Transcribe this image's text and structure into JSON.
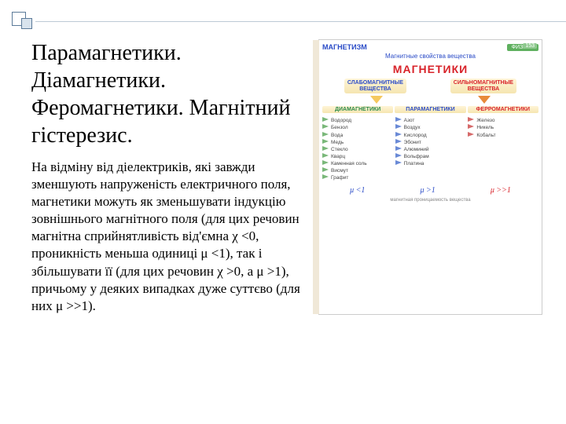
{
  "title": "Парамагнетики. Діамагнетики. Феромагнетики. Магнітний гістерезис.",
  "body": "На відміну від діелектриків, які завжди зменшують напруженість електричного поля, магнетики можуть як зменьшувати індукцію зовнішнього магнітного поля (для цих речовин магнітна сприйнятливість від'ємна χ <0, проникність меньша одиниці μ <1), так і збільшувати її (для цих речовин χ >0, а μ >1), причьому у деяких випадках дуже суттєво (для них μ >>1).",
  "diagram": {
    "page_num": "153",
    "header_left": "МАГНЕТИЗМ",
    "header_right": "ФИЗИКА",
    "subhead": "Магнитные свойства вещества",
    "main_title": "МАГНЕТИКИ",
    "groups": [
      {
        "label": "СЛАБОМАГНИТНЫЕ\nВЕЩЕСТВА",
        "color_class": "blue",
        "arrow_color": "#f5c95f"
      },
      {
        "label": "СИЛЬНОМАГНИТНЫЕ\nВЕЩЕСТВА",
        "color_class": "red",
        "arrow_color": "#e88a3a"
      }
    ],
    "subgroups": [
      {
        "label": "ДИАМАГНЕТИКИ",
        "color": "#2a8a4a"
      },
      {
        "label": "ПАРАМАГНЕТИКИ",
        "color": "#2a4bc7"
      },
      {
        "label": "ФЕРРОМАГНЕТИКИ",
        "color": "#d8232a"
      }
    ],
    "columns": [
      {
        "arrow_color": "#7ab87a",
        "items": [
          "Водород",
          "Бензол",
          "Вода",
          "Медь",
          "Стекло",
          "Кварц",
          "Каменная соль",
          "Висмут",
          "Графит"
        ]
      },
      {
        "arrow_color": "#6a8ad6",
        "items": [
          "Азот",
          "Воздух",
          "Кислород",
          "Эбонит",
          "Алюминий",
          "Вольфрам",
          "Платина"
        ]
      },
      {
        "arrow_color": "#d66a6a",
        "items": [
          "Железо",
          "Никель",
          "Кобальт"
        ]
      }
    ],
    "footer": [
      {
        "text": "μ <1",
        "cls": "blue"
      },
      {
        "text": "μ >1",
        "cls": "blue"
      },
      {
        "text": "μ >>1",
        "cls": "red"
      }
    ],
    "footnote": "магнитная проницаемость вещества"
  }
}
